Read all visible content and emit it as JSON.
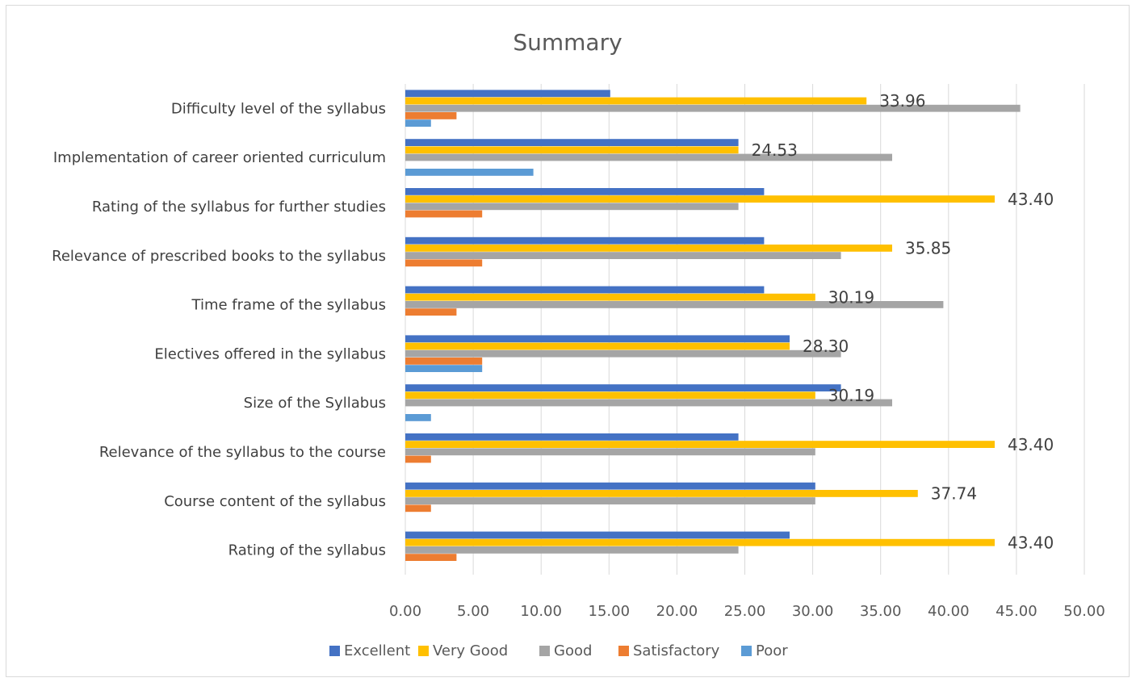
{
  "chart_data": {
    "type": "bar",
    "orientation": "horizontal",
    "title": "Summary",
    "categories": [
      "Difficulty level of the syllabus",
      "Implementation of career oriented curriculum",
      "Rating of  the syllabus for  further studies",
      "Relevance of prescribed books  to the syllabus",
      "Time frame of the syllabus",
      "Electives offered in the syllabus",
      "Size of the Syllabus",
      "Relevance of the  syllabus to the course",
      "Course content of the syllabus",
      "Rating of the syllabus"
    ],
    "series": [
      {
        "name": "Excellent",
        "color": "#4472C4",
        "values": [
          15.09,
          24.53,
          26.42,
          26.42,
          26.42,
          28.3,
          32.08,
          24.53,
          30.19,
          28.3
        ]
      },
      {
        "name": "Very Good",
        "color": "#FFC000",
        "values": [
          33.96,
          24.53,
          43.4,
          35.85,
          30.19,
          28.3,
          30.19,
          43.4,
          37.74,
          43.4
        ]
      },
      {
        "name": "Good",
        "color": "#A5A5A5",
        "values": [
          45.28,
          35.85,
          24.53,
          32.08,
          39.62,
          32.08,
          35.85,
          30.19,
          30.19,
          24.53
        ]
      },
      {
        "name": "Satisfactory",
        "color": "#ED7D31",
        "values": [
          3.77,
          0,
          5.66,
          5.66,
          3.77,
          5.66,
          0,
          1.89,
          1.89,
          3.77
        ]
      },
      {
        "name": "Poor",
        "color": "#5B9BD5",
        "values": [
          1.89,
          9.43,
          0,
          0,
          0,
          5.66,
          1.89,
          0,
          0,
          0
        ]
      }
    ],
    "data_labels": [
      "33.96",
      "24.53",
      "43.40",
      "35.85",
      "30.19",
      "28.30",
      "30.19",
      "43.40",
      "37.74",
      "43.40"
    ],
    "data_labels_series": "Very Good",
    "x_ticks": [
      "0.00",
      "5.00",
      "10.00",
      "15.00",
      "20.00",
      "25.00",
      "30.00",
      "35.00",
      "40.00",
      "45.00",
      "50.00"
    ],
    "xlim": [
      0,
      50
    ],
    "grid": true,
    "legend_position": "bottom"
  }
}
